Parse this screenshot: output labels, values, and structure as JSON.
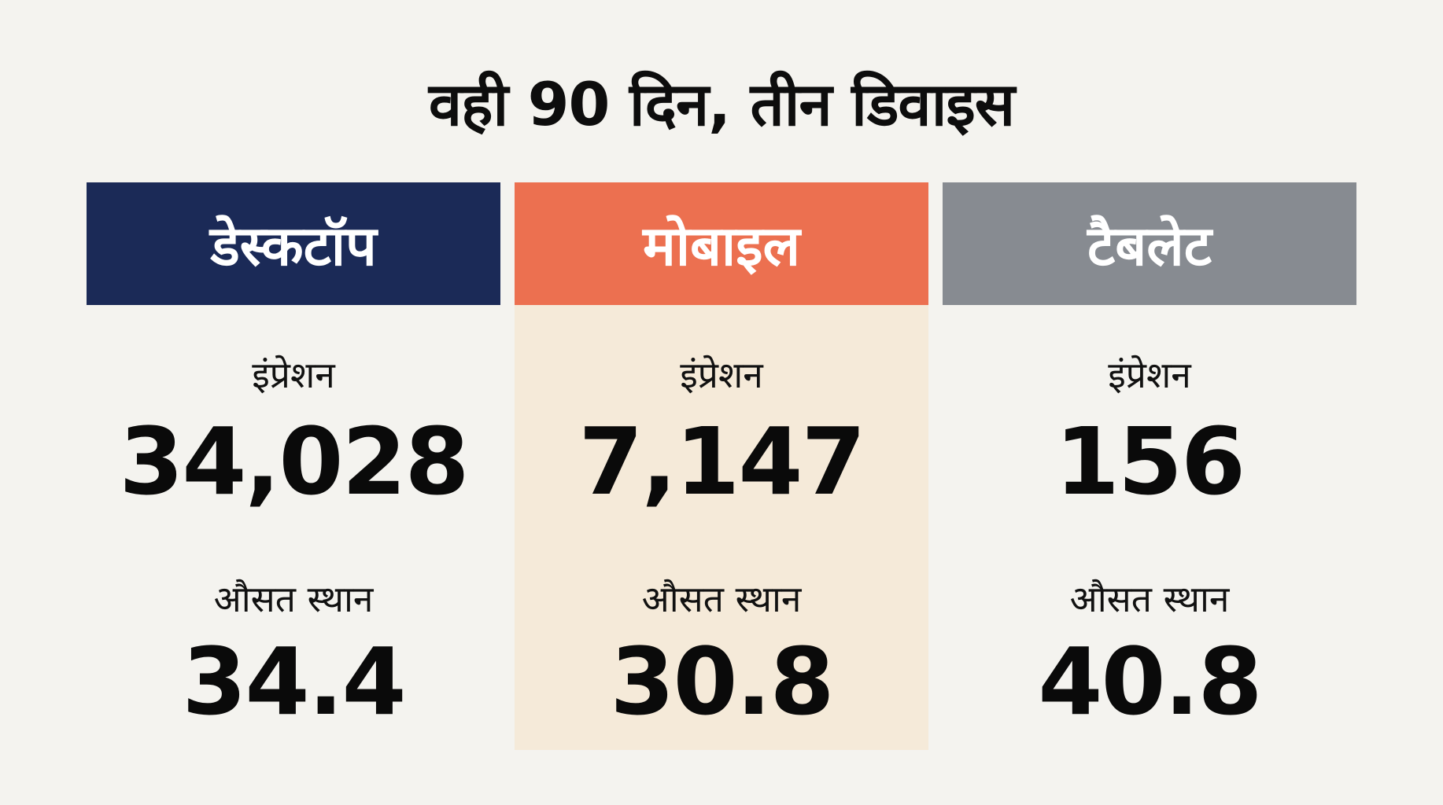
{
  "title": "वही 90 दिन, तीन डिवाइस",
  "devices": [
    {
      "name": "डेस्कटॉप",
      "color": "#1b2a57",
      "impressions_label": "इंप्रेशन",
      "impressions": "34,028",
      "position_label": "औसत स्थान",
      "position": "34.4"
    },
    {
      "name": "मोबाइल",
      "color": "#ec7050",
      "impressions_label": "इंप्रेशन",
      "impressions": "7,147",
      "position_label": "औसत स्थान",
      "position": "30.8",
      "highlighted": true,
      "highlight_bg": "#f5ead9"
    },
    {
      "name": "टैबलेट",
      "color": "#878b91",
      "impressions_label": "इंप्रेशन",
      "impressions": "156",
      "position_label": "औसत स्थान",
      "position": "40.8"
    }
  ]
}
